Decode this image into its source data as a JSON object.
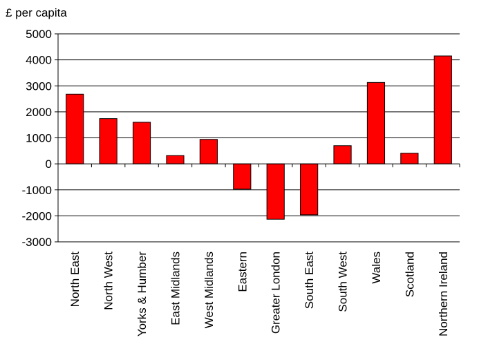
{
  "chart_data": {
    "type": "bar",
    "title": "",
    "ylabel": "£ per capita",
    "xlabel": "",
    "categories": [
      "North East",
      "North West",
      "Yorks & Humber",
      "East Midlands",
      "West Midlands",
      "Eastern",
      "Greater London",
      "South East",
      "South West",
      "Wales",
      "Scotland",
      "Northern Ireland"
    ],
    "values": [
      2680,
      1740,
      1600,
      320,
      940,
      -970,
      -2130,
      -1960,
      700,
      3130,
      410,
      4150
    ],
    "ylim": [
      -3000,
      5000
    ],
    "yticks": [
      "5000",
      "4000",
      "3000",
      "2000",
      "1000",
      "0",
      "-1000",
      "-2000",
      "-3000"
    ],
    "grid": true,
    "legend": "none",
    "colors": {
      "bar": "#ff0000",
      "bar_stroke": "#000000",
      "grid": "#000000",
      "axis": "#000000"
    }
  }
}
